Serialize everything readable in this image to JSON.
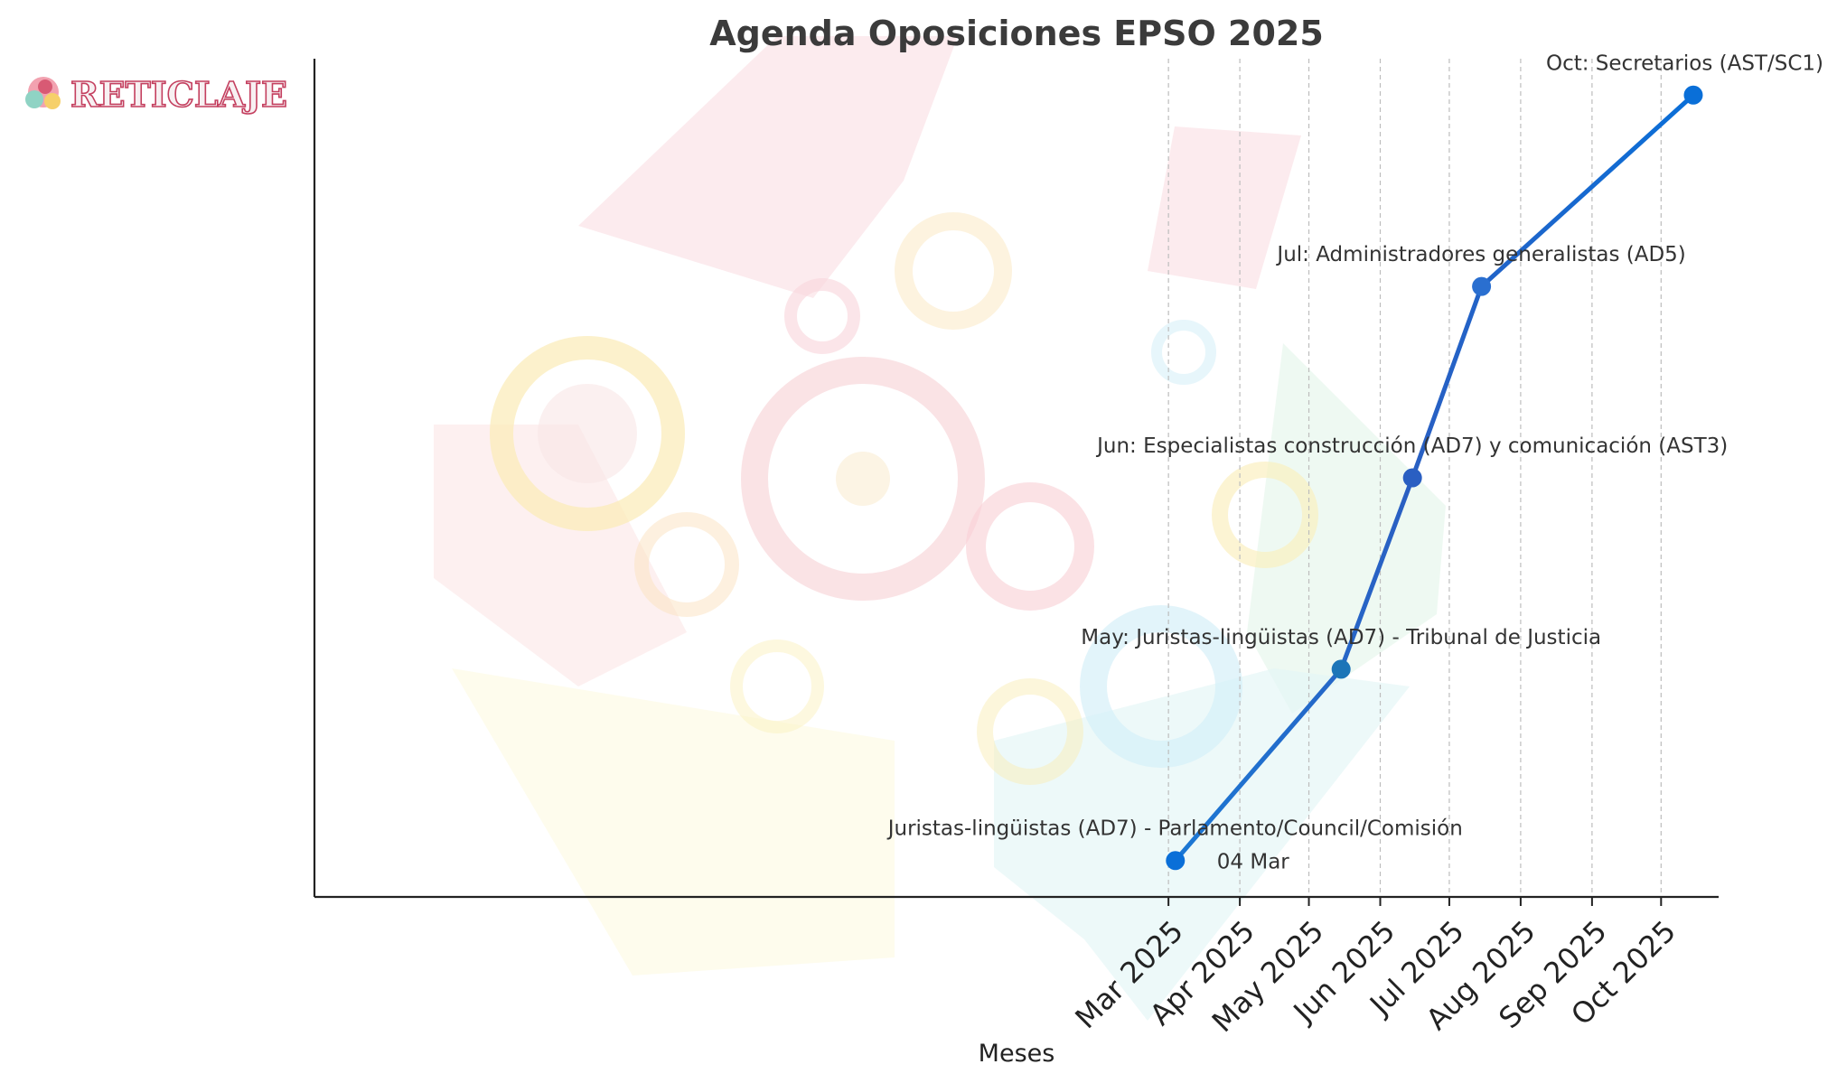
{
  "chart_data": {
    "type": "line",
    "title": "Agenda Oposiciones EPSO 2025",
    "xlabel": "Meses",
    "ylabel": "",
    "x_tick_labels": [
      "Mar 2025",
      "Apr 2025",
      "May 2025",
      "Jun 2025",
      "Jul 2025",
      "Aug 2025",
      "Sep 2025",
      "Oct 2025"
    ],
    "x_ticks": [
      "2025-03-01",
      "2025-04-01",
      "2025-05-01",
      "2025-06-01",
      "2025-07-01",
      "2025-08-01",
      "2025-09-01",
      "2025-10-01"
    ],
    "xlim": [
      "2024-02-24",
      "2025-10-26"
    ],
    "ylim": [
      0.81,
      5.19
    ],
    "points": [
      {
        "date": "2025-03-04",
        "y": 1,
        "label": "Juristas-lingüistas (AD7) - Parlamento/Council/Comisión",
        "sublabel": "04 Mar"
      },
      {
        "date": "2025-05-15",
        "y": 2,
        "label": "May: Juristas-lingüistas (AD7) - Tribunal de Justicia"
      },
      {
        "date": "2025-06-15",
        "y": 3,
        "label": "Jun: Especialistas construcción (AD7) y comunicación (AST3)"
      },
      {
        "date": "2025-07-15",
        "y": 4,
        "label": "Jul: Administradores generalistas (AD5)"
      },
      {
        "date": "2025-10-15",
        "y": 5,
        "label": "Oct: Secretarios (AST/SC1)"
      }
    ],
    "grid_x": true,
    "grid_y": false,
    "line_color": "#0a6fd8"
  },
  "logo": {
    "text": "RETICLAJE"
  }
}
